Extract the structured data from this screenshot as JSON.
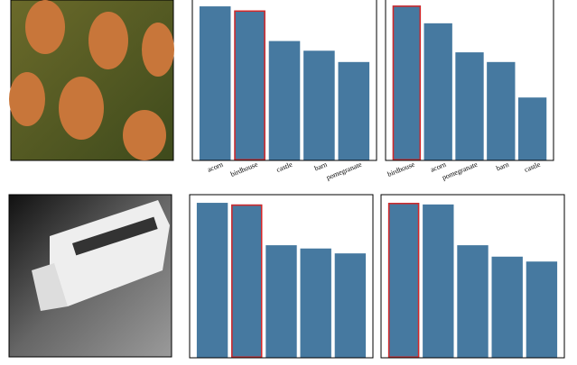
{
  "chart_data": [
    {
      "type": "bar",
      "categories": [
        "acorn",
        "birdhouse",
        "castle",
        "barn",
        "pomegranate"
      ],
      "values": [
        0.955,
        0.93,
        0.74,
        0.68,
        0.61
      ],
      "color": "#4679a0",
      "highlight_color": "#d62728",
      "highlight": 1,
      "ylim": [
        0,
        1
      ]
    },
    {
      "type": "bar",
      "categories": [
        "birdhouse",
        "acorn",
        "pomegranate",
        "barn",
        "castle"
      ],
      "values": [
        0.96,
        0.85,
        0.67,
        0.61,
        0.39
      ],
      "color": "#4679a0",
      "highlight_color": "#d62728",
      "highlight": 0,
      "ylim": [
        0,
        1
      ]
    },
    {
      "type": "bar",
      "categories": [
        null,
        null,
        null,
        null,
        null
      ],
      "values": [
        0.95,
        0.94,
        0.69,
        0.67,
        0.64
      ],
      "color": "#4679a0",
      "highlight_color": "#d62728",
      "highlight": 1,
      "ylim": [
        0,
        1
      ]
    },
    {
      "type": "bar",
      "categories": [
        null,
        null,
        null,
        null,
        null
      ],
      "values": [
        0.95,
        0.94,
        0.69,
        0.62,
        0.59
      ],
      "color": "#4679a0",
      "highlight_color": "#d62728",
      "highlight": 0,
      "ylim": [
        0,
        1
      ]
    }
  ]
}
